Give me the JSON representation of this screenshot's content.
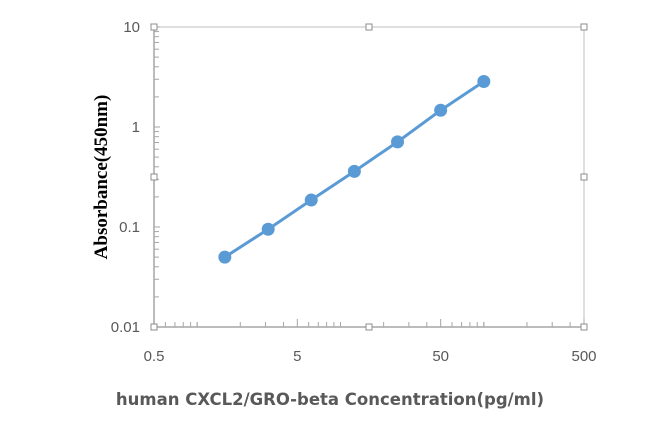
{
  "chart_data": {
    "type": "line",
    "xlabel": "human CXCL2/GRO-beta Concentration(pg/ml)",
    "ylabel": "Absorbance(450nm)",
    "x_scale": "log",
    "y_scale": "log",
    "xlim": [
      0.5,
      500
    ],
    "ylim": [
      0.01,
      10
    ],
    "x_ticks": [
      "0.5",
      "5",
      "50",
      "500"
    ],
    "y_ticks": [
      "0.01",
      "0.1",
      "1",
      "10"
    ],
    "grid": false,
    "legend": "none",
    "series": [
      {
        "x": [
          1.56,
          3.13,
          6.25,
          12.5,
          25,
          50,
          100
        ],
        "y": [
          0.05,
          0.095,
          0.186,
          0.36,
          0.71,
          1.47,
          2.85
        ],
        "color": "#5B9BD5",
        "marker": "circle"
      }
    ]
  }
}
